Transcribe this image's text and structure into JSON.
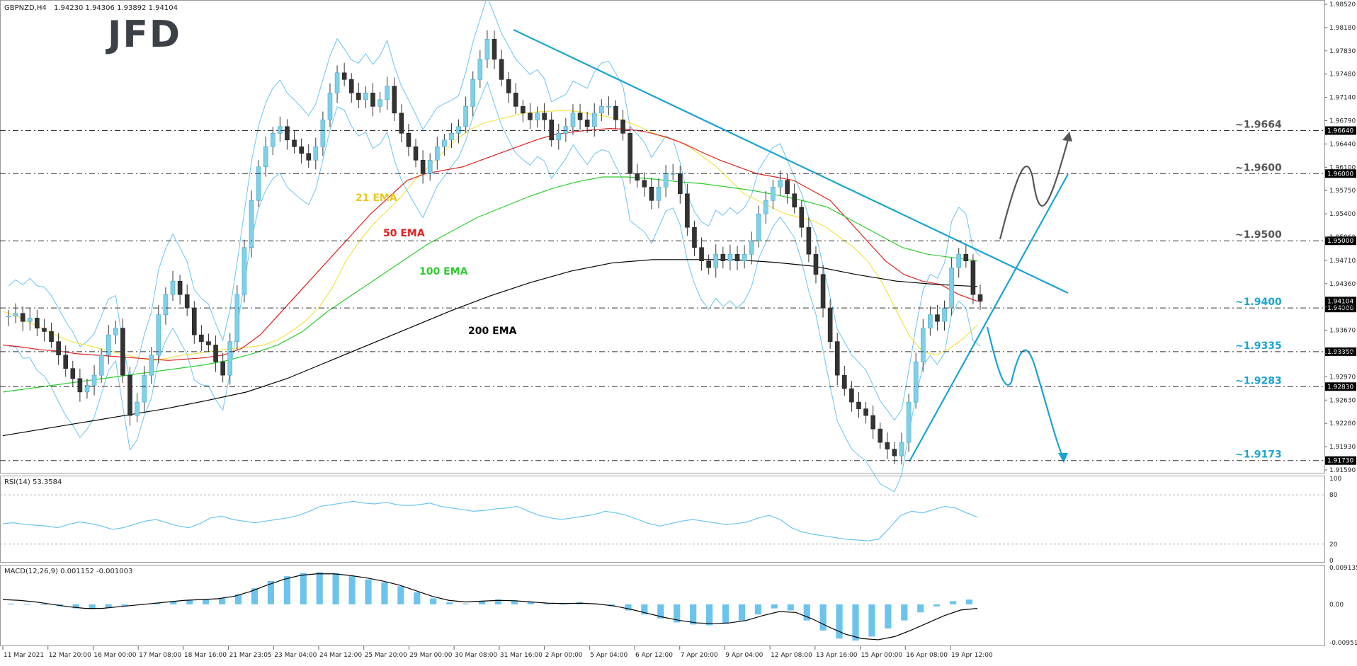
{
  "header": {
    "symbol": "GBPNZD,H4",
    "ohlc": "1.94230 1.94306 1.93892 1.94104",
    "logo": "JFD"
  },
  "colors": {
    "up_candle": "#7fd0e8",
    "down_candle": "#333333",
    "ema21": "#f2e24a",
    "ema50": "#e02020",
    "ema100": "#2ecc2e",
    "ema200": "#000000",
    "bollinger": "#6cc4ee",
    "trendline": "#1ba3d0",
    "level_label": "#1ba3d0",
    "resistance_label": "#555555",
    "arrow_up": "#555555",
    "arrow_down": "#1ba3d0",
    "grid": "#e8e8e8"
  },
  "indicator_labels": {
    "ema21": "21 EMA",
    "ema50": "50 EMA",
    "ema100": "100 EMA",
    "ema200": "200 EMA"
  },
  "levels": [
    {
      "label": "~1.9664",
      "price": 1.9664,
      "tag": "1.96640",
      "color_key": "resistance_label"
    },
    {
      "label": "~1.9600",
      "price": 1.96,
      "tag": "1.96000",
      "color_key": "resistance_label"
    },
    {
      "label": "~1.9500",
      "price": 1.95,
      "tag": "1.95000",
      "color_key": "resistance_label"
    },
    {
      "label": "~1.9400",
      "price": 1.94,
      "tag": "1.94000",
      "color_key": "level_label"
    },
    {
      "label": "~1.9335",
      "price": 1.9335,
      "tag": "1.93350",
      "color_key": "level_label"
    },
    {
      "label": "~1.9283",
      "price": 1.9283,
      "tag": "1.92830",
      "color_key": "level_label"
    },
    {
      "label": "~1.9173",
      "price": 1.9173,
      "tag": "1.91730",
      "color_key": "level_label"
    }
  ],
  "current_price_tag": "1.94104",
  "price_axis_ticks": [
    "1.98520",
    "1.98180",
    "1.97830",
    "1.97480",
    "1.97140",
    "1.96790",
    "1.96440",
    "1.96100",
    "1.95750",
    "1.95400",
    "1.95060",
    "1.94710",
    "1.94360",
    "1.94020",
    "1.93670",
    "1.93330",
    "1.92970",
    "1.92630",
    "1.92280",
    "1.91930",
    "1.91590"
  ],
  "time_axis": [
    "11 Mar 2021",
    "12 Mar 20:00",
    "16 Mar 00:00",
    "17 Mar 08:00",
    "18 Mar 16:00",
    "21 Mar 23:05",
    "23 Mar 04:00",
    "24 Mar 12:00",
    "25 Mar 20:00",
    "29 Mar 00:00",
    "30 Mar 08:00",
    "31 Mar 16:00",
    "2 Apr 00:00",
    "5 Apr 04:00",
    "6 Apr 12:00",
    "7 Apr 20:00",
    "9 Apr 04:00",
    "12 Apr 08:00",
    "13 Apr 16:00",
    "15 Apr 00:00",
    "16 Apr 08:00",
    "19 Apr 12:00"
  ],
  "rsi": {
    "title": "RSI(14) 53.3584",
    "ticks": [
      "100",
      "80",
      "20",
      "0"
    ]
  },
  "macd": {
    "title": "MACD(12,26,9) 0.001152 -0.001003",
    "ticks": [
      "0.009135",
      "0.00",
      "-0.009514"
    ]
  },
  "chart_data": [
    {
      "type": "candlestick",
      "title": "GBPNZD,H4",
      "ylim": [
        1.9159,
        1.9852
      ],
      "series_price": [
        1.9388,
        1.9392,
        1.938,
        1.9385,
        1.937,
        1.9365,
        1.935,
        1.933,
        1.931,
        1.9295,
        1.9275,
        1.9285,
        1.93,
        1.933,
        1.936,
        1.937,
        1.93,
        1.924,
        1.926,
        1.93,
        1.933,
        1.939,
        1.942,
        1.944,
        1.942,
        1.94,
        1.936,
        1.935,
        1.9345,
        1.932,
        1.93,
        1.935,
        1.942,
        1.949,
        1.956,
        1.961,
        1.964,
        1.966,
        1.967,
        1.965,
        1.964,
        1.963,
        1.962,
        1.964,
        1.968,
        1.972,
        1.975,
        1.974,
        1.972,
        1.971,
        1.972,
        1.97,
        1.971,
        1.973,
        1.969,
        1.966,
        1.964,
        1.962,
        1.96,
        1.962,
        1.964,
        1.965,
        1.966,
        1.967,
        1.97,
        1.974,
        1.977,
        1.98,
        1.977,
        1.974,
        1.972,
        1.97,
        1.969,
        1.968,
        1.969,
        1.968,
        1.965,
        1.966,
        1.967,
        1.969,
        1.968,
        1.967,
        1.969,
        1.97,
        1.97,
        1.968,
        1.966,
        1.96,
        1.959,
        1.958,
        1.956,
        1.958,
        1.96,
        1.96,
        1.957,
        1.952,
        1.949,
        1.947,
        1.946,
        1.948,
        1.947,
        1.948,
        1.947,
        1.948,
        1.95,
        1.954,
        1.956,
        1.958,
        1.959,
        1.957,
        1.955,
        1.952,
        1.948,
        1.945,
        1.94,
        1.935,
        1.93,
        1.928,
        1.926,
        1.925,
        1.924,
        1.922,
        1.92,
        1.919,
        1.918,
        1.92,
        1.926,
        1.932,
        1.937,
        1.939,
        1.938,
        1.94,
        1.946,
        1.948,
        1.947,
        1.942,
        1.941
      ],
      "series": [
        {
          "name": "21 EMA",
          "values": [
            1.9395,
            1.9388,
            1.9378,
            1.9368,
            1.9358,
            1.935,
            1.9345,
            1.934,
            1.9335,
            1.933,
            1.9325,
            1.9322,
            1.9325,
            1.933,
            1.9332,
            1.9335,
            1.9338,
            1.934,
            1.9342,
            1.9345,
            1.9352,
            1.9365,
            1.938,
            1.94,
            1.943,
            1.947,
            1.95,
            1.9525,
            1.9545,
            1.9565,
            1.959,
            1.961,
            1.963,
            1.965,
            1.9665,
            1.9675,
            1.968,
            1.9685,
            1.969,
            1.9692,
            1.9693,
            1.9694,
            1.9692,
            1.9688,
            1.9685,
            1.968,
            1.9673,
            1.9664,
            1.9655,
            1.965,
            1.964,
            1.9625,
            1.961,
            1.959,
            1.957,
            1.956,
            1.955,
            1.954,
            1.9535,
            1.953,
            1.952,
            1.9505,
            1.949,
            1.947,
            1.944,
            1.94,
            1.936,
            1.9335,
            1.933,
            1.934,
            1.9355,
            1.9375
          ]
        },
        {
          "name": "50 EMA",
          "values": [
            1.9345,
            1.9342,
            1.9338,
            1.9336,
            1.9332,
            1.933,
            1.9328,
            1.9326,
            1.9324,
            1.9322,
            1.9324,
            1.9326,
            1.933,
            1.934,
            1.936,
            1.939,
            1.942,
            1.945,
            1.948,
            1.951,
            1.954,
            1.9565,
            1.959,
            1.96,
            1.9605,
            1.961,
            1.962,
            1.963,
            1.964,
            1.965,
            1.9658,
            1.9662,
            1.9665,
            1.9667,
            1.9666,
            1.9662,
            1.9655,
            1.9645,
            1.9632,
            1.962,
            1.961,
            1.96,
            1.9595,
            1.959,
            1.9575,
            1.956,
            1.953,
            1.95,
            1.947,
            1.945,
            1.944,
            1.9435,
            1.942,
            1.941
          ]
        },
        {
          "name": "100 EMA",
          "values": [
            1.9275,
            1.928,
            1.9285,
            1.929,
            1.9295,
            1.93,
            1.9305,
            1.931,
            1.9315,
            1.9322,
            1.9332,
            1.9345,
            1.9365,
            1.9395,
            1.942,
            1.9445,
            1.947,
            1.9495,
            1.9515,
            1.9535,
            1.955,
            1.9565,
            1.9578,
            1.9588,
            1.9595,
            1.9595,
            1.9592,
            1.9588,
            1.9585,
            1.958,
            1.9575,
            1.9568,
            1.956,
            1.955,
            1.953,
            1.951,
            1.949,
            1.948,
            1.9475,
            1.947
          ]
        },
        {
          "name": "200 EMA",
          "values": [
            1.921,
            1.922,
            1.923,
            1.924,
            1.925,
            1.9262,
            1.9275,
            1.9295,
            1.932,
            1.9345,
            1.937,
            1.9395,
            1.9418,
            1.9438,
            1.9455,
            1.9467,
            1.9472,
            1.9472,
            1.9472,
            1.9468,
            1.9462,
            1.945,
            1.944,
            1.9435,
            1.9432
          ]
        }
      ],
      "levels": [
        1.9664,
        1.96,
        1.95,
        1.94,
        1.9335,
        1.9283,
        1.9173
      ],
      "annotations": [
        "21 EMA",
        "50 EMA",
        "100 EMA",
        "200 EMA"
      ],
      "grid": false
    },
    {
      "type": "line",
      "title": "RSI(14) 53.3584",
      "ylim": [
        0,
        100
      ],
      "series": [
        {
          "name": "RSI(14)",
          "values": [
            45,
            46,
            44,
            43,
            42,
            40,
            44,
            47,
            45,
            42,
            38,
            40,
            44,
            48,
            50,
            46,
            42,
            40,
            45,
            52,
            54,
            50,
            48,
            46,
            48,
            50,
            52,
            55,
            60,
            66,
            68,
            70,
            72,
            70,
            69,
            71,
            68,
            67,
            68,
            70,
            66,
            64,
            62,
            60,
            61,
            63,
            64,
            66,
            60,
            55,
            52,
            50,
            52,
            54,
            56,
            60,
            58,
            55,
            50,
            45,
            42,
            45,
            48,
            50,
            48,
            46,
            44,
            45,
            47,
            52,
            55,
            50,
            40,
            35,
            32,
            30,
            28,
            26,
            25,
            24,
            26,
            40,
            55,
            60,
            58,
            62,
            66,
            64,
            58,
            53
          ]
        }
      ],
      "ticks": [
        100,
        80,
        20,
        0
      ]
    },
    {
      "type": "bar",
      "title": "MACD(12,26,9) 0.001152 -0.001003",
      "ylim": [
        -0.009514,
        0.009135
      ],
      "series": [
        {
          "name": "MACD histogram",
          "values": [
            0.0002,
            0.0001,
            0.0,
            -0.0005,
            -0.001,
            -0.0012,
            -0.0008,
            -0.0004,
            0.0,
            0.0004,
            0.0008,
            0.001,
            0.0012,
            0.0015,
            0.0025,
            0.004,
            0.0058,
            0.007,
            0.0078,
            0.008,
            0.0078,
            0.007,
            0.0062,
            0.0055,
            0.0045,
            0.003,
            0.0015,
            0.0005,
            0.0002,
            0.0008,
            0.0012,
            0.001,
            0.0006,
            0.0002,
            0.0003,
            0.0005,
            0.0002,
            -0.0005,
            -0.0015,
            -0.0025,
            -0.0035,
            -0.0045,
            -0.005,
            -0.0052,
            -0.0048,
            -0.004,
            -0.0025,
            -0.001,
            -0.0015,
            -0.004,
            -0.0065,
            -0.0085,
            -0.009,
            -0.008,
            -0.006,
            -0.004,
            -0.002,
            -0.0005,
            0.0008,
            0.0012
          ]
        },
        {
          "name": "Signal",
          "values": [
            0.0012,
            0.001,
            0.0006,
            0.0,
            -0.0006,
            -0.001,
            -0.001,
            -0.0006,
            -0.0002,
            0.0002,
            0.0006,
            0.001,
            0.0012,
            0.0014,
            0.002,
            0.0032,
            0.0048,
            0.0062,
            0.0072,
            0.0076,
            0.0076,
            0.0072,
            0.0066,
            0.0058,
            0.0048,
            0.0034,
            0.002,
            0.001,
            0.0006,
            0.0008,
            0.001,
            0.0009,
            0.0006,
            0.0003,
            0.0002,
            0.0003,
            0.0001,
            -0.0004,
            -0.0012,
            -0.0022,
            -0.0032,
            -0.004,
            -0.0046,
            -0.0048,
            -0.0046,
            -0.004,
            -0.0028,
            -0.0018,
            -0.002,
            -0.0036,
            -0.0056,
            -0.0074,
            -0.0085,
            -0.0088,
            -0.008,
            -0.0064,
            -0.0046,
            -0.0028,
            -0.0014,
            -0.001
          ]
        }
      ],
      "ticks": [
        0.009135,
        0.0,
        -0.009514
      ]
    }
  ]
}
